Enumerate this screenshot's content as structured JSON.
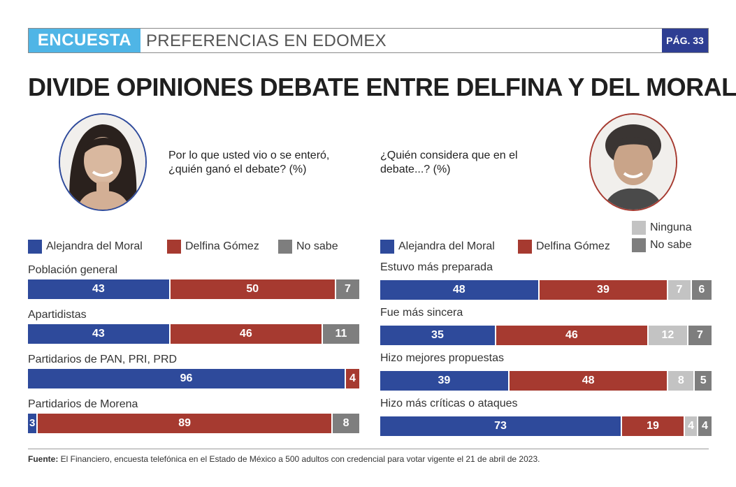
{
  "header": {
    "section": "ENCUESTA",
    "topic": "PREFERENCIAS EN EDOMEX",
    "page": "PÁG. 33"
  },
  "title": "DIVIDE OPINIONES DEBATE ENTRE DELFINA Y DEL MORAL",
  "colors": {
    "moral": "#2e4a9b",
    "delfina": "#a63a30",
    "ninguna": "#c3c3c3",
    "no_sabe": "#7e7e7e",
    "accent": "#4fb5e6"
  },
  "source": {
    "label": "Fuente:",
    "text": " El Financiero, encuesta telefónica en el Estado de México a 500 adultos con credencial para votar vigente el 21 de abril de 2023."
  },
  "chart_data": [
    {
      "type": "bar",
      "stacked": true,
      "orientation": "horizontal",
      "question": "Por lo que usted vio o se enteró, ¿quién ganó el debate? (%)",
      "question_lines": [
        "Por lo que usted vio o se enteró,",
        "¿quién ganó el debate? (%)"
      ],
      "categories": [
        "Población general",
        "Apartidistas",
        "Partidarios de PAN, PRI, PRD",
        "Partidarios de Morena"
      ],
      "series": [
        {
          "name": "Alejandra del Moral",
          "color": "#2e4a9b",
          "values": [
            43,
            43,
            96,
            3
          ]
        },
        {
          "name": "Delfina Gómez",
          "color": "#a63a30",
          "values": [
            50,
            46,
            4,
            89
          ]
        },
        {
          "name": "No sabe",
          "color": "#7e7e7e",
          "values": [
            7,
            11,
            0,
            8
          ]
        }
      ],
      "xlim": [
        0,
        100
      ],
      "legend": "top"
    },
    {
      "type": "bar",
      "stacked": true,
      "orientation": "horizontal",
      "question": "¿Quién considera que en el debate...? (%)",
      "question_lines": [
        "¿Quién considera que en el",
        "debate...? (%)"
      ],
      "categories": [
        "Estuvo más preparada",
        "Fue más sincera",
        "Hizo mejores propuestas",
        "Hizo más críticas o ataques"
      ],
      "series": [
        {
          "name": "Alejandra del Moral",
          "color": "#2e4a9b",
          "values": [
            48,
            35,
            39,
            73
          ]
        },
        {
          "name": "Delfina Gómez",
          "color": "#a63a30",
          "values": [
            39,
            46,
            48,
            19
          ]
        },
        {
          "name": "Ninguna",
          "color": "#c3c3c3",
          "values": [
            7,
            12,
            8,
            4
          ]
        },
        {
          "name": "No sabe",
          "color": "#7e7e7e",
          "values": [
            6,
            7,
            5,
            4
          ]
        }
      ],
      "xlim": [
        0,
        100
      ],
      "legend": "top"
    }
  ]
}
